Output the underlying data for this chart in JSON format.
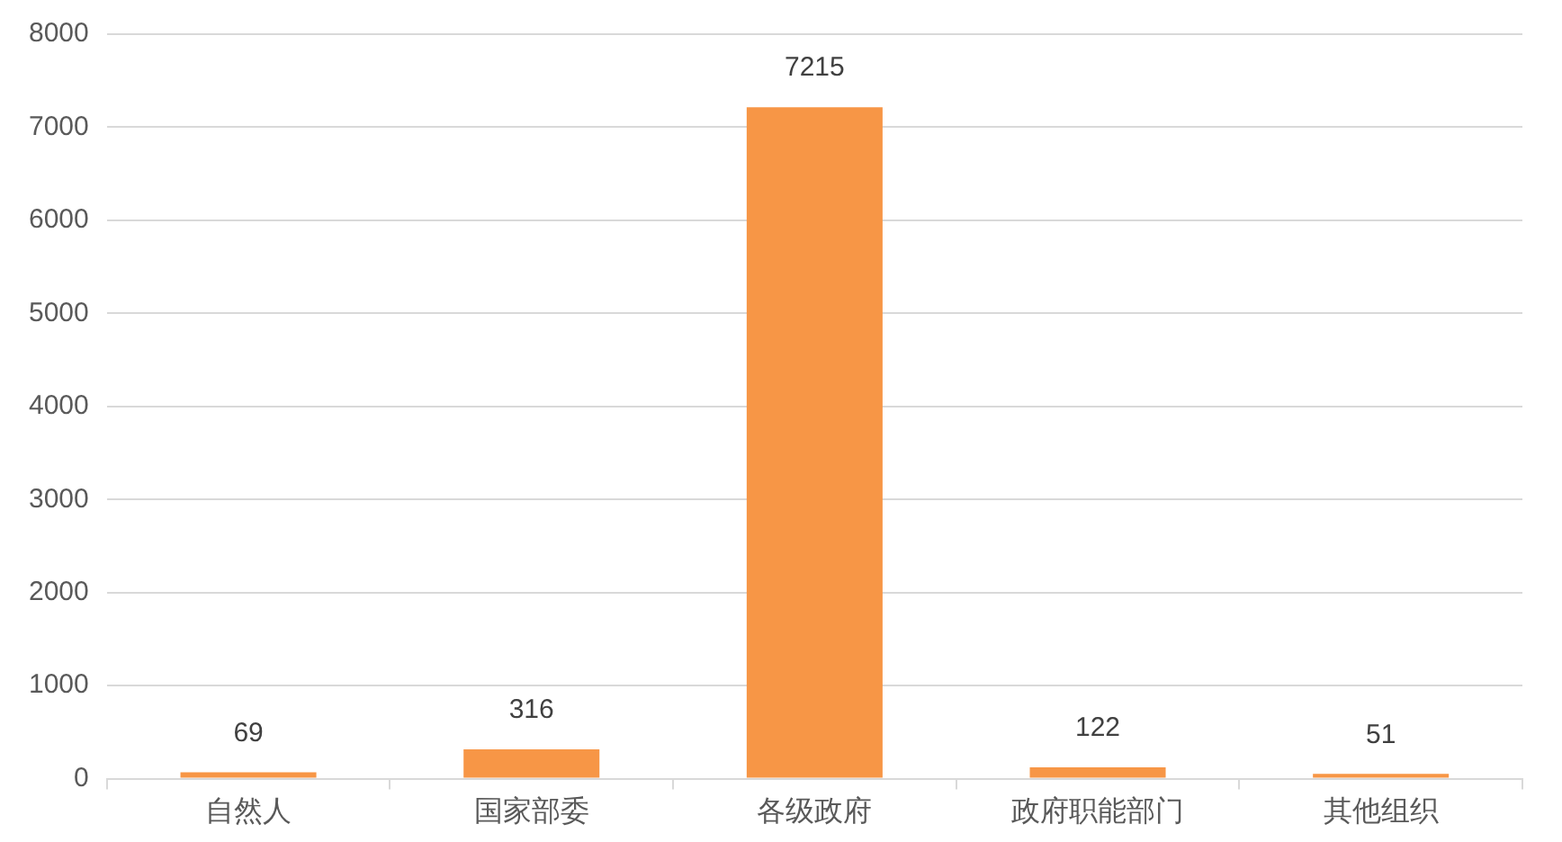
{
  "chart_data": {
    "type": "bar",
    "categories": [
      "自然人",
      "国家部委",
      "各级政府",
      "政府职能部门",
      "其他组织"
    ],
    "values": [
      69,
      316,
      7215,
      122,
      51
    ],
    "color": "#f79646",
    "ylim": [
      0,
      8000
    ],
    "yticks": [
      0,
      1000,
      2000,
      3000,
      4000,
      5000,
      6000,
      7000,
      8000
    ],
    "grid": "y",
    "data_labels": true,
    "legend": false
  }
}
